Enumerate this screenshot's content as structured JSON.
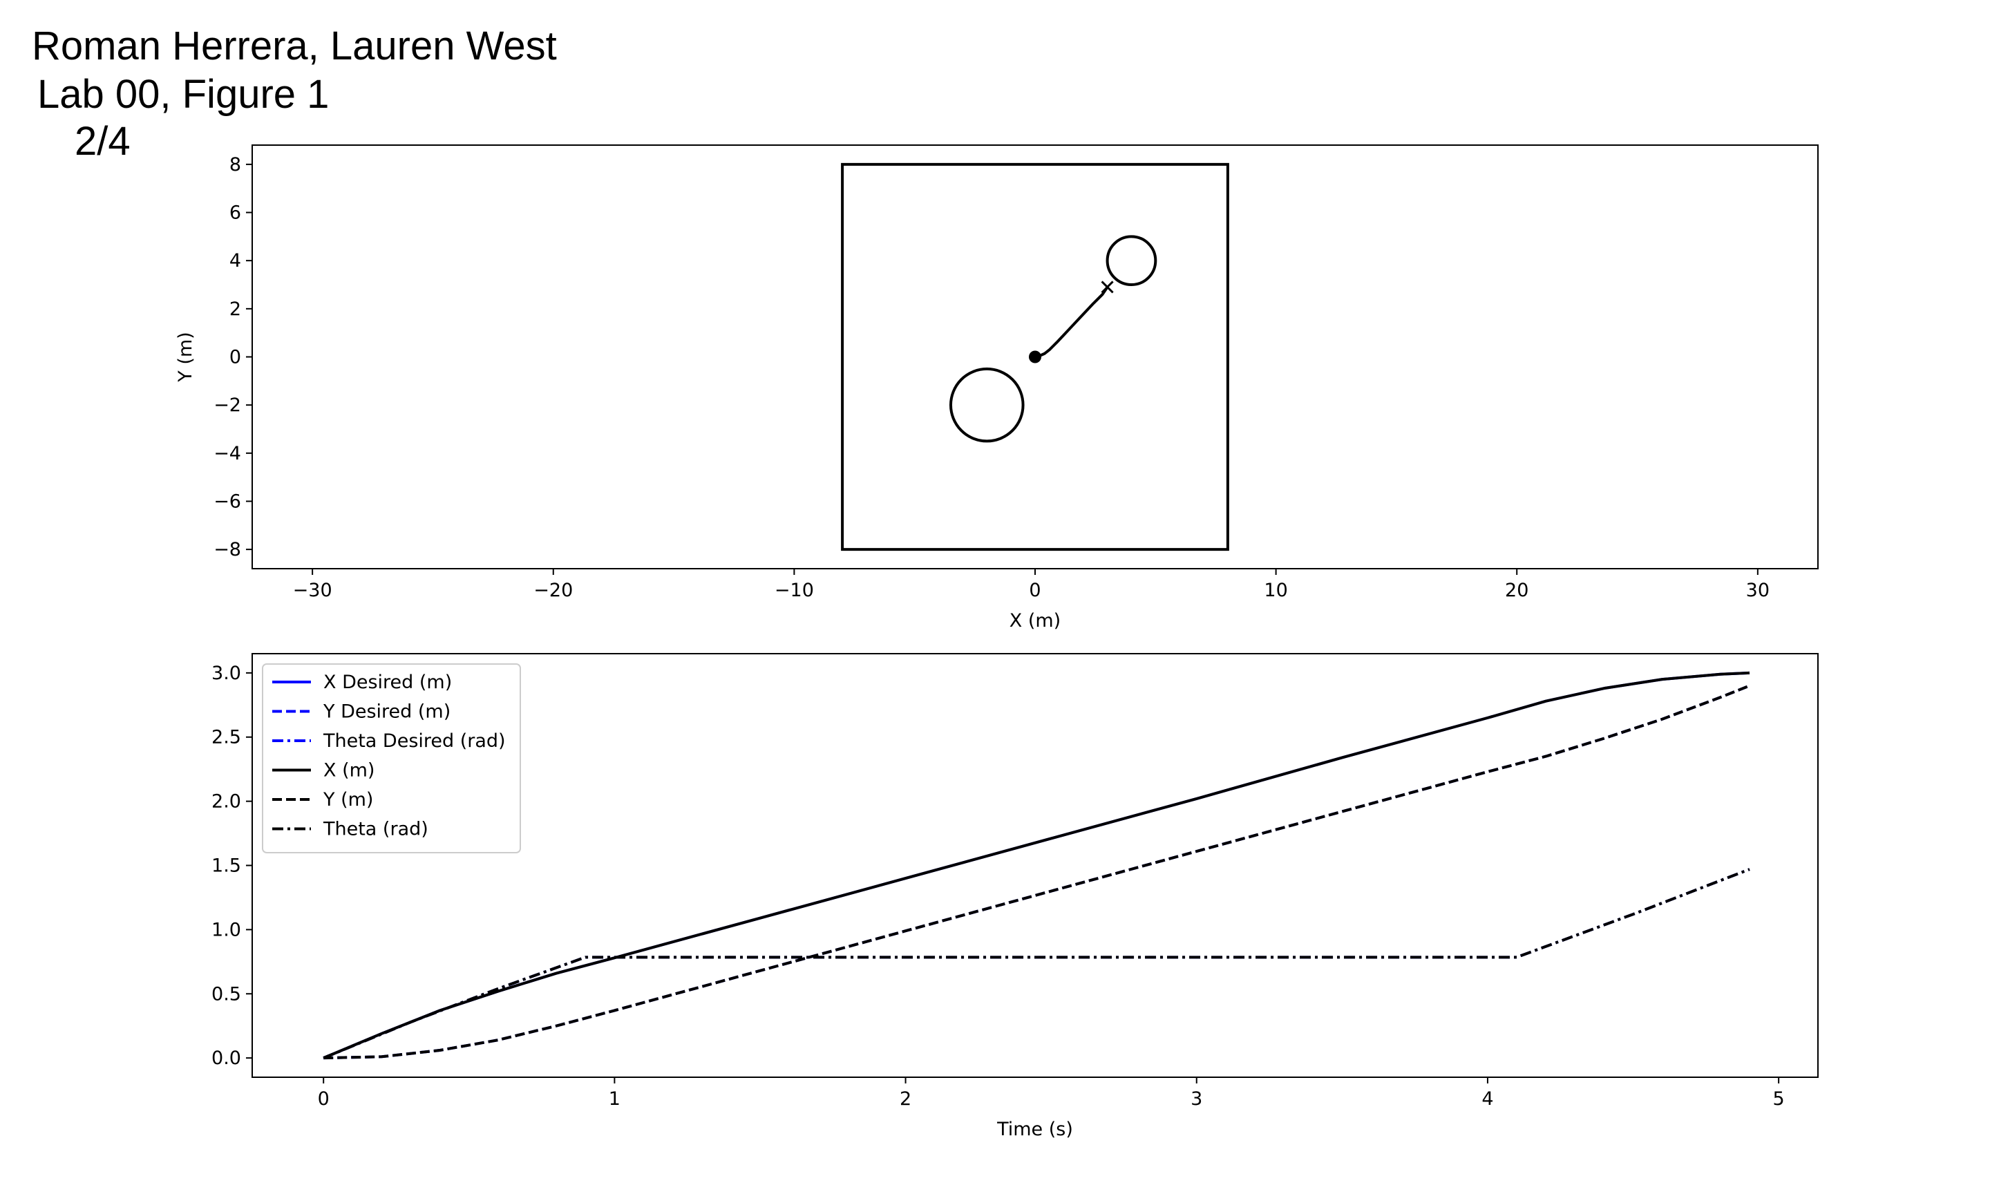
{
  "header": {
    "authors": "Roman Herrera, Lauren West",
    "lab": "Lab 00, Figure 1",
    "page": "2/4"
  },
  "chart_data": [
    {
      "type": "scatter",
      "xlabel": "X (m)",
      "ylabel": "Y (m)",
      "xlim": [
        -32.5,
        32.5
      ],
      "ylim": [
        -8.8,
        8.8
      ],
      "xticks": [
        -30,
        -20,
        -10,
        0,
        10,
        20,
        30
      ],
      "yticks": [
        -8,
        -6,
        -4,
        -2,
        0,
        2,
        4,
        6,
        8
      ],
      "xtick_labels": [
        "−30",
        "−20",
        "−10",
        "0",
        "10",
        "20",
        "30"
      ],
      "ytick_labels": [
        "−8",
        "−6",
        "−4",
        "−2",
        "0",
        "2",
        "4",
        "6",
        "8"
      ],
      "boundary": {
        "x": [
          -8,
          8
        ],
        "y": [
          -8,
          8
        ]
      },
      "obstacles": [
        {
          "cx": -2,
          "cy": -2,
          "r": 1.5
        },
        {
          "cx": 4,
          "cy": 4,
          "r": 1.0
        }
      ],
      "start": [
        0,
        0
      ],
      "goal": [
        3,
        2.9
      ],
      "trajectory": {
        "x": [
          0,
          0.2,
          0.4,
          0.6,
          0.9,
          1.2,
          1.5,
          1.8,
          2.1,
          2.4,
          2.6,
          2.8,
          2.9,
          3.0
        ],
        "y": [
          0,
          0.05,
          0.14,
          0.3,
          0.6,
          0.92,
          1.24,
          1.56,
          1.88,
          2.2,
          2.4,
          2.6,
          2.75,
          2.9
        ]
      },
      "grid": false
    },
    {
      "type": "line",
      "xlabel": "Time (s)",
      "ylabel": "",
      "xlim": [
        -0.245,
        5.135
      ],
      "ylim": [
        -0.15,
        3.15
      ],
      "xticks": [
        0,
        1,
        2,
        3,
        4,
        5
      ],
      "yticks": [
        0.0,
        0.5,
        1.0,
        1.5,
        2.0,
        2.5,
        3.0
      ],
      "xtick_labels": [
        "0",
        "1",
        "2",
        "3",
        "4",
        "5"
      ],
      "ytick_labels": [
        "0.0",
        "0.5",
        "1.0",
        "1.5",
        "2.0",
        "2.5",
        "3.0"
      ],
      "legend_position": "top-left",
      "grid": false,
      "series": [
        {
          "name": "X Desired (m)",
          "color": "#0000ff",
          "dash": "solid",
          "x": [
            0,
            0.2,
            0.4,
            0.6,
            0.8,
            1.0,
            1.5,
            2.0,
            2.5,
            3.0,
            3.5,
            4.0,
            4.2,
            4.4,
            4.6,
            4.8,
            4.9
          ],
          "y": [
            0,
            0.19,
            0.37,
            0.52,
            0.66,
            0.78,
            1.09,
            1.4,
            1.71,
            2.02,
            2.34,
            2.65,
            2.78,
            2.88,
            2.95,
            2.99,
            3.0
          ]
        },
        {
          "name": "Y Desired (m)",
          "color": "#0000ff",
          "dash": "dashed",
          "x": [
            0,
            0.2,
            0.4,
            0.6,
            0.8,
            1.0,
            1.5,
            2.0,
            2.5,
            3.0,
            3.5,
            4.0,
            4.2,
            4.4,
            4.6,
            4.8,
            4.9
          ],
          "y": [
            0,
            0.01,
            0.06,
            0.14,
            0.25,
            0.37,
            0.68,
            0.99,
            1.3,
            1.61,
            1.92,
            2.23,
            2.35,
            2.49,
            2.64,
            2.81,
            2.9
          ]
        },
        {
          "name": "Theta Desired (rad)",
          "color": "#0000ff",
          "dash": "dashdot",
          "x": [
            0,
            0.3,
            0.6,
            0.9,
            1.0,
            2.0,
            3.0,
            4.1,
            4.5,
            4.9
          ],
          "y": [
            0,
            0.28,
            0.54,
            0.785,
            0.785,
            0.785,
            0.785,
            0.785,
            1.12,
            1.47
          ]
        },
        {
          "name": "X (m)",
          "color": "#000000",
          "dash": "solid",
          "x": [
            0,
            0.2,
            0.4,
            0.6,
            0.8,
            1.0,
            1.5,
            2.0,
            2.5,
            3.0,
            3.5,
            4.0,
            4.2,
            4.4,
            4.6,
            4.8,
            4.9
          ],
          "y": [
            0,
            0.19,
            0.37,
            0.52,
            0.66,
            0.78,
            1.09,
            1.4,
            1.71,
            2.02,
            2.34,
            2.65,
            2.78,
            2.88,
            2.95,
            2.99,
            3.0
          ]
        },
        {
          "name": "Y (m)",
          "color": "#000000",
          "dash": "dashed",
          "x": [
            0,
            0.2,
            0.4,
            0.6,
            0.8,
            1.0,
            1.5,
            2.0,
            2.5,
            3.0,
            3.5,
            4.0,
            4.2,
            4.4,
            4.6,
            4.8,
            4.9
          ],
          "y": [
            0,
            0.01,
            0.06,
            0.14,
            0.25,
            0.37,
            0.68,
            0.99,
            1.3,
            1.61,
            1.92,
            2.23,
            2.35,
            2.49,
            2.64,
            2.81,
            2.9
          ]
        },
        {
          "name": "Theta (rad)",
          "color": "#000000",
          "dash": "dashdot",
          "x": [
            0,
            0.3,
            0.6,
            0.9,
            1.0,
            2.0,
            3.0,
            4.1,
            4.5,
            4.9
          ],
          "y": [
            0,
            0.28,
            0.54,
            0.785,
            0.785,
            0.785,
            0.785,
            0.785,
            1.12,
            1.47
          ]
        }
      ]
    }
  ]
}
